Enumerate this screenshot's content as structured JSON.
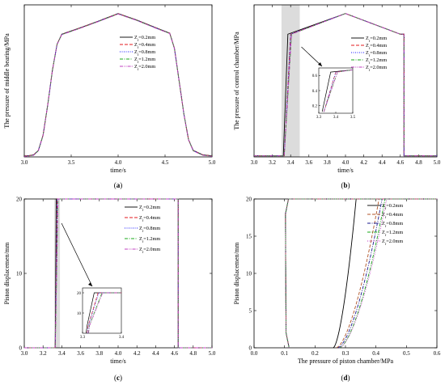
{
  "chart_data": [
    {
      "id": "a",
      "type": "line",
      "caption_letter": "a",
      "xlabel": "time/s",
      "ylabel": "The pressure of middle bearing/MPa",
      "xlim": [
        3.0,
        5.0
      ],
      "ylim": [
        0.1,
        0.8
      ],
      "x_ticks": [
        "3.0",
        "3.5",
        "4.0",
        "4.5",
        "5.0"
      ],
      "y_ticks": [],
      "legend_position": "right-middle",
      "series": [
        {
          "name": "Z_f=0.2mm",
          "color": "#000000",
          "dash": "solid"
        },
        {
          "name": "Z_f=0.4mm",
          "color": "#e31a1c",
          "dash": "dash"
        },
        {
          "name": "Z_f=0.8mm",
          "color": "#1a1aff",
          "dash": "dot"
        },
        {
          "name": "Z_f=1.2mm",
          "color": "#18a818",
          "dash": "dashdot"
        },
        {
          "name": "Z_f=2.0mm",
          "color": "#c040c0",
          "dash": "dashdotdot"
        }
      ],
      "x": [
        3.0,
        3.05,
        3.1,
        3.15,
        3.2,
        3.25,
        3.3,
        3.35,
        3.4,
        3.6,
        3.8,
        4.0,
        4.2,
        4.4,
        4.55,
        4.6,
        4.65,
        4.7,
        4.75,
        4.8,
        4.9,
        5.0
      ],
      "y": [
        0.105,
        0.106,
        0.11,
        0.13,
        0.2,
        0.34,
        0.5,
        0.62,
        0.665,
        0.695,
        0.727,
        0.76,
        0.73,
        0.695,
        0.67,
        0.6,
        0.45,
        0.3,
        0.18,
        0.13,
        0.11,
        0.105
      ]
    },
    {
      "id": "b",
      "type": "line",
      "caption_letter": "b",
      "xlabel": "time/s",
      "ylabel": "The pressure of control chamber/MPa",
      "xlim": [
        3.0,
        5.0
      ],
      "ylim": [
        0.1,
        0.8
      ],
      "x_ticks": [
        "3.0",
        "3.2",
        "3.4",
        "3.6",
        "3.8",
        "4.0",
        "4.2",
        "4.4",
        "4.6",
        "4.8",
        "5.0"
      ],
      "y_ticks": [],
      "shaded_region": [
        3.3,
        3.5
      ],
      "legend_position": "right-middle",
      "series": [
        {
          "name": "Z_f=0.2mm",
          "color": "#000000",
          "dash": "solid",
          "rise_start": 3.32,
          "rise_end": 3.37
        },
        {
          "name": "Z_f=0.4mm",
          "color": "#e31a1c",
          "dash": "dash",
          "rise_start": 3.33,
          "rise_end": 3.4
        },
        {
          "name": "Z_f=0.8mm",
          "color": "#1a1aff",
          "dash": "dot",
          "rise_start": 3.33,
          "rise_end": 3.4
        },
        {
          "name": "Z_f=1.2mm",
          "color": "#18a818",
          "dash": "dashdot",
          "rise_start": 3.33,
          "rise_end": 3.41
        },
        {
          "name": "Z_f=2.0mm",
          "color": "#c040c0",
          "dash": "dashdotdot",
          "rise_start": 3.33,
          "rise_end": 3.41
        }
      ],
      "plateau_points": {
        "x": [
          3.4,
          4.0,
          4.6
        ],
        "y": [
          0.665,
          0.76,
          0.665
        ]
      },
      "drop_x": 4.64,
      "base_y": 0.105,
      "inset": {
        "xlim": [
          3.3,
          3.5
        ],
        "ylim": [
          0.1,
          0.7
        ],
        "x_ticks": [
          "3.3",
          "3.4",
          "3.5"
        ],
        "y_ticks": [
          "0.2",
          "0.4",
          "0.6"
        ]
      }
    },
    {
      "id": "c",
      "type": "line",
      "caption_letter": "c",
      "xlabel": "time/s",
      "ylabel": "Piston displacemen/mm",
      "xlim": [
        3.0,
        5.0
      ],
      "ylim": [
        0,
        20
      ],
      "x_ticks": [
        "3.0",
        "3.2",
        "3.4",
        "3.6",
        "3.8",
        "4.0",
        "4.2",
        "4.4",
        "4.6",
        "4.8",
        "5.0"
      ],
      "y_ticks": [
        "0",
        "10",
        "20"
      ],
      "shaded_region": [
        3.32,
        3.38
      ],
      "legend_position": "right-top",
      "series": [
        {
          "name": "Z_f=0.2mm",
          "color": "#000000",
          "dash": "solid",
          "rise_start": 3.33,
          "rise_end": 3.34
        },
        {
          "name": "Z_f=0.4mm",
          "color": "#e31a1c",
          "dash": "dash",
          "rise_start": 3.33,
          "rise_end": 3.35
        },
        {
          "name": "Z_f=0.8mm",
          "color": "#1a1aff",
          "dash": "dot",
          "rise_start": 3.33,
          "rise_end": 3.35
        },
        {
          "name": "Z_f=1.2mm",
          "color": "#18a818",
          "dash": "dashdot",
          "rise_start": 3.33,
          "rise_end": 3.36
        },
        {
          "name": "Z_f=2.0mm",
          "color": "#c040c0",
          "dash": "dashdotdot",
          "rise_start": 3.33,
          "rise_end": 3.36
        }
      ],
      "drop_x": 4.64,
      "inset": {
        "xlim": [
          3.3,
          3.4
        ],
        "ylim": [
          0,
          20
        ],
        "x_ticks": [
          "3.3",
          "3.4"
        ],
        "y_ticks": [
          "10",
          "20"
        ]
      }
    },
    {
      "id": "d",
      "type": "line",
      "caption_letter": "d",
      "xlabel": "The pressure of piston chamber/MPa",
      "ylabel": "Piston displacemen/mm",
      "xlim": [
        0.0,
        0.6
      ],
      "ylim": [
        0,
        20
      ],
      "x_ticks": [
        "0.0",
        "0.1",
        "0.2",
        "0.3",
        "0.4",
        "0.5",
        "0.6"
      ],
      "y_ticks": [
        "0",
        "5",
        "10",
        "15",
        "20"
      ],
      "legend_position": "top-right",
      "series": [
        {
          "name": "Z_f=0.2mm",
          "color": "#000000",
          "dash": "solid",
          "curve_start": 0.26,
          "curve_end": 0.335
        },
        {
          "name": "Z_f=0.4mm",
          "color": "#b0562a",
          "dash": "dash",
          "curve_start": 0.27,
          "curve_end": 0.41
        },
        {
          "name": "Z_f=0.8mm",
          "color": "#1a1a8c",
          "dash": "dashdot",
          "curve_start": 0.275,
          "curve_end": 0.42
        },
        {
          "name": "Z_f=1.2mm",
          "color": "#18a818",
          "dash": "dashdot",
          "curve_start": 0.28,
          "curve_end": 0.43
        },
        {
          "name": "Z_f=2.0mm",
          "color": "#c040c0",
          "dash": "dot",
          "curve_start": 0.28,
          "curve_end": 0.435
        }
      ],
      "return_x": 0.105
    }
  ]
}
